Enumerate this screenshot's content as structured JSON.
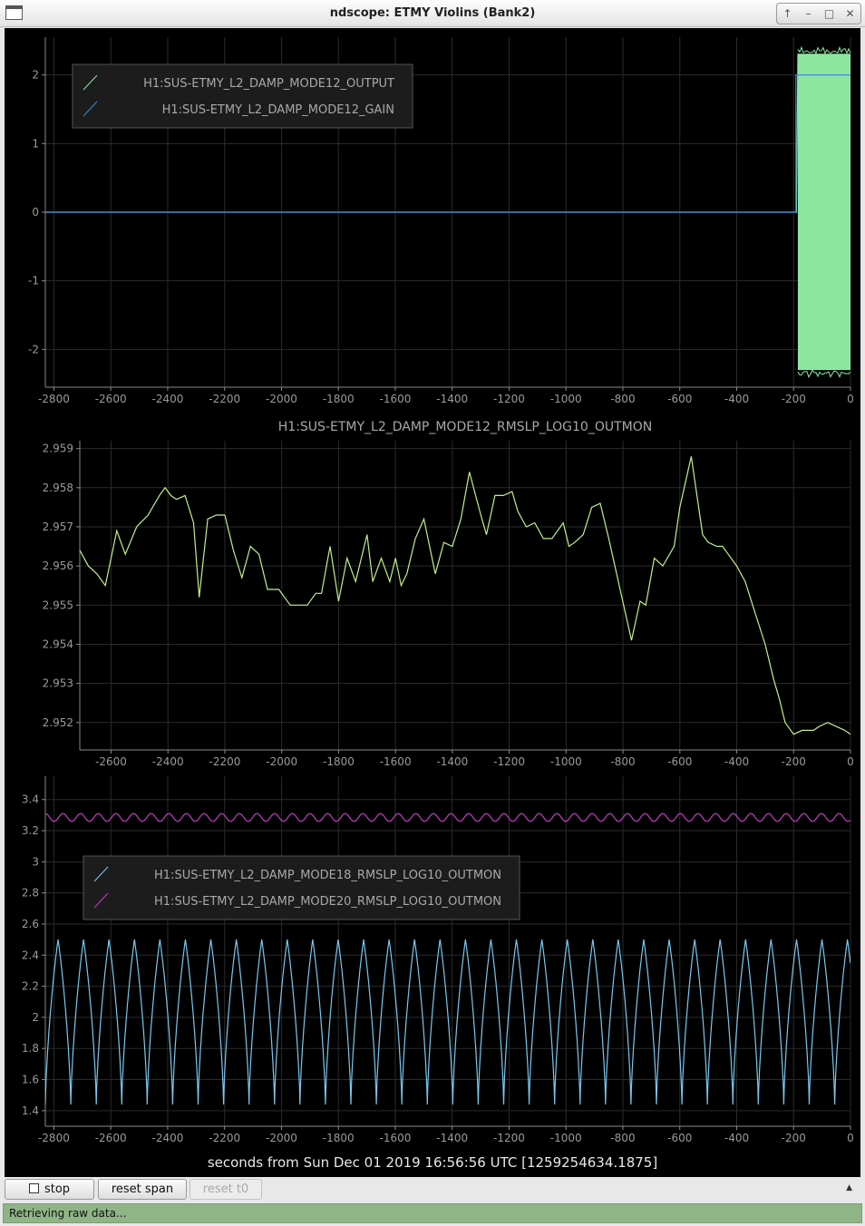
{
  "window": {
    "title": "ndscope: ETMY Violins (Bank2)",
    "controls": [
      "↑",
      "–",
      "□",
      "✕"
    ]
  },
  "plots": [
    {
      "title": "",
      "legend": [
        {
          "label": "H1:SUS-ETMY_L2_DAMP_MODE12_OUTPUT",
          "color": "#8ce6a0"
        },
        {
          "label": "H1:SUS-ETMY_L2_DAMP_MODE12_GAIN",
          "color": "#3d8be0"
        }
      ]
    },
    {
      "title": "H1:SUS-ETMY_L2_DAMP_MODE12_RMSLP_LOG10_OUTMON",
      "legend": []
    },
    {
      "title": "",
      "legend": [
        {
          "label": "H1:SUS-ETMY_L2_DAMP_MODE18_RMSLP_LOG10_OUTMON",
          "color": "#78c8f0"
        },
        {
          "label": "H1:SUS-ETMY_L2_DAMP_MODE20_RMSLP_LOG10_OUTMON",
          "color": "#c83cc8"
        }
      ]
    }
  ],
  "x_axis_label": "seconds from Sun Dec 01 2019 16:56:56 UTC [1259254634.1875]",
  "toolbar": {
    "stop_label": "stop",
    "reset_span_label": "reset span",
    "reset_t0_label": "reset t0",
    "expand_icon": "▲"
  },
  "status": {
    "text": "Retrieving raw data...",
    "color": "#8fb587"
  },
  "chart_data": [
    {
      "type": "line",
      "title": "",
      "xlim": [
        -2830,
        0
      ],
      "ylim": [
        -2.55,
        2.55
      ],
      "x_ticks": [
        -2800,
        -2600,
        -2400,
        -2200,
        -2000,
        -1800,
        -1600,
        -1400,
        -1200,
        -1000,
        -800,
        -600,
        -400,
        -200,
        0
      ],
      "y_ticks": [
        -2,
        -1,
        0,
        1,
        2
      ],
      "grid": true,
      "legend_position": "top-left",
      "series": [
        {
          "name": "H1:SUS-ETMY_L2_DAMP_MODE12_OUTPUT",
          "color": "#8ce6a0",
          "x": [
            -2830,
            -190,
            -185,
            0
          ],
          "y": [
            0,
            0,
            2.3,
            2.3
          ],
          "envelope": {
            "x_start": -185,
            "x_end": 0,
            "min": -2.3,
            "max": 2.3
          }
        },
        {
          "name": "H1:SUS-ETMY_L2_DAMP_MODE12_GAIN",
          "color": "#3d8be0",
          "x": [
            -2830,
            -192,
            -192,
            0
          ],
          "y": [
            0,
            0,
            2,
            2
          ]
        }
      ]
    },
    {
      "type": "line",
      "title": "H1:SUS-ETMY_L2_DAMP_MODE12_RMSLP_LOG10_OUTMON",
      "xlim": [
        -2710,
        0
      ],
      "ylim": [
        2.9513,
        2.9592
      ],
      "x_ticks": [
        -2600,
        -2400,
        -2200,
        -2000,
        -1800,
        -1600,
        -1400,
        -1200,
        -1000,
        -800,
        -600,
        -400,
        -200,
        0
      ],
      "y_ticks": [
        2.952,
        2.953,
        2.954,
        2.955,
        2.956,
        2.957,
        2.958,
        2.959
      ],
      "grid": true,
      "series": [
        {
          "name": "H1:SUS-ETMY_L2_DAMP_MODE12_RMSLP_LOG10_OUTMON",
          "color": "#c0f08c",
          "x": [
            -2710,
            -2680,
            -2650,
            -2620,
            -2580,
            -2550,
            -2510,
            -2470,
            -2430,
            -2410,
            -2390,
            -2370,
            -2340,
            -2310,
            -2290,
            -2260,
            -2230,
            -2200,
            -2170,
            -2140,
            -2110,
            -2080,
            -2050,
            -2010,
            -1990,
            -1970,
            -1940,
            -1910,
            -1880,
            -1860,
            -1830,
            -1800,
            -1770,
            -1740,
            -1700,
            -1680,
            -1650,
            -1620,
            -1600,
            -1580,
            -1560,
            -1530,
            -1500,
            -1480,
            -1460,
            -1430,
            -1400,
            -1370,
            -1340,
            -1300,
            -1280,
            -1250,
            -1220,
            -1190,
            -1170,
            -1140,
            -1110,
            -1080,
            -1050,
            -1010,
            -990,
            -970,
            -940,
            -910,
            -880,
            -850,
            -810,
            -770,
            -740,
            -720,
            -690,
            -660,
            -620,
            -600,
            -560,
            -520,
            -500,
            -470,
            -450,
            -430,
            -400,
            -370,
            -340,
            -300,
            -270,
            -250,
            -230,
            -200,
            -170,
            -130,
            -110,
            -80,
            -50,
            -20,
            0
          ],
          "y": [
            2.9564,
            2.956,
            2.9558,
            2.9555,
            2.9569,
            2.9563,
            2.957,
            2.9573,
            2.9578,
            2.958,
            2.9578,
            2.9577,
            2.9578,
            2.9571,
            2.9552,
            2.9572,
            2.9573,
            2.9573,
            2.9564,
            2.9557,
            2.9565,
            2.9563,
            2.9554,
            2.9554,
            2.9552,
            2.955,
            2.955,
            2.955,
            2.9553,
            2.9553,
            2.9565,
            2.9551,
            2.9562,
            2.9556,
            2.9568,
            2.9556,
            2.9562,
            2.9556,
            2.9562,
            2.9555,
            2.9558,
            2.9567,
            2.9572,
            2.9565,
            2.9558,
            2.9566,
            2.9565,
            2.9572,
            2.9584,
            2.9573,
            2.9568,
            2.9578,
            2.9578,
            2.9579,
            2.9574,
            2.957,
            2.9571,
            2.9567,
            2.9567,
            2.9571,
            2.9565,
            2.9566,
            2.9568,
            2.9575,
            2.9576,
            2.9567,
            2.9554,
            2.9541,
            2.9551,
            2.955,
            2.9562,
            2.956,
            2.9565,
            2.9575,
            2.9588,
            2.9568,
            2.9566,
            2.9565,
            2.9565,
            2.9563,
            2.956,
            2.9556,
            2.9549,
            2.954,
            2.9531,
            2.9526,
            2.952,
            2.9517,
            2.9518,
            2.9518,
            2.9519,
            2.952,
            2.9519,
            2.9518,
            2.9517
          ]
        }
      ]
    },
    {
      "type": "line",
      "title": "",
      "xlim": [
        -2830,
        0
      ],
      "ylim": [
        1.3,
        3.55
      ],
      "x_ticks": [
        -2800,
        -2600,
        -2400,
        -2200,
        -2000,
        -1800,
        -1600,
        -1400,
        -1200,
        -1000,
        -800,
        -600,
        -400,
        -200,
        0
      ],
      "y_ticks": [
        1.4,
        1.6,
        1.8,
        2,
        2.2,
        2.4,
        2.6,
        2.8,
        3,
        3.2,
        3.4
      ],
      "grid": true,
      "legend_position": "upper-left",
      "series": [
        {
          "name": "H1:SUS-ETMY_L2_DAMP_MODE18_RMSLP_LOG10_OUTMON",
          "color": "#78c8f0",
          "periodic": {
            "period": 89.5,
            "min": 1.44,
            "max": 2.5
          }
        },
        {
          "name": "H1:SUS-ETMY_L2_DAMP_MODE20_RMSLP_LOG10_OUTMON",
          "color": "#c83cc8",
          "periodic": {
            "period": 62,
            "min": 3.26,
            "max": 3.31
          }
        }
      ]
    }
  ]
}
